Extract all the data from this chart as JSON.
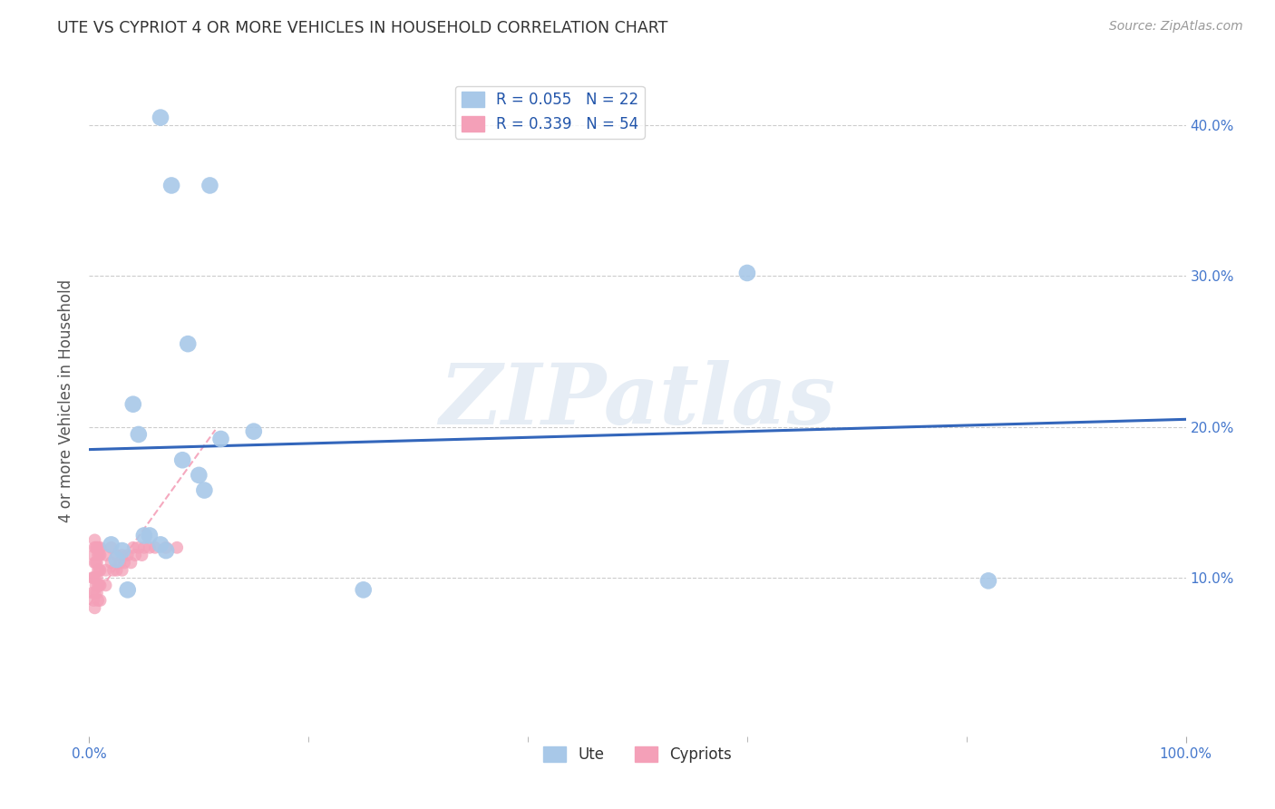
{
  "title": "UTE VS CYPRIOT 4 OR MORE VEHICLES IN HOUSEHOLD CORRELATION CHART",
  "source": "Source: ZipAtlas.com",
  "ylabel": "4 or more Vehicles in Household",
  "xlim": [
    0.0,
    1.0
  ],
  "ylim": [
    -0.005,
    0.44
  ],
  "legend_ute_r": "R = 0.055",
  "legend_ute_n": "N = 22",
  "legend_cyp_r": "R = 0.339",
  "legend_cyp_n": "N = 54",
  "watermark": "ZIPatlas",
  "ute_color": "#a8c8e8",
  "cyp_color": "#f4a0b8",
  "ute_line_color": "#3366bb",
  "cyp_line_color": "#f4a0b8",
  "grid_color": "#cccccc",
  "background_color": "#ffffff",
  "ute_scatter_x": [
    0.065,
    0.075,
    0.11,
    0.04,
    0.045,
    0.09,
    0.12,
    0.085,
    0.1,
    0.105,
    0.055,
    0.065,
    0.07,
    0.05,
    0.15,
    0.02,
    0.03,
    0.025,
    0.035,
    0.6,
    0.82,
    0.25
  ],
  "ute_scatter_y": [
    0.405,
    0.36,
    0.36,
    0.215,
    0.195,
    0.255,
    0.192,
    0.178,
    0.168,
    0.158,
    0.128,
    0.122,
    0.118,
    0.128,
    0.197,
    0.122,
    0.118,
    0.112,
    0.092,
    0.302,
    0.098,
    0.092
  ],
  "cyp_scatter_x": [
    0.003,
    0.003,
    0.004,
    0.004,
    0.004,
    0.005,
    0.005,
    0.005,
    0.005,
    0.005,
    0.005,
    0.006,
    0.006,
    0.006,
    0.007,
    0.007,
    0.007,
    0.007,
    0.008,
    0.008,
    0.008,
    0.008,
    0.008,
    0.009,
    0.009,
    0.009,
    0.01,
    0.01,
    0.01,
    0.01,
    0.01,
    0.015,
    0.015,
    0.015,
    0.02,
    0.02,
    0.022,
    0.025,
    0.025,
    0.028,
    0.03,
    0.03,
    0.032,
    0.035,
    0.038,
    0.04,
    0.042,
    0.045,
    0.048,
    0.05,
    0.055,
    0.06,
    0.07,
    0.08
  ],
  "cyp_scatter_y": [
    0.1,
    0.09,
    0.115,
    0.1,
    0.085,
    0.125,
    0.12,
    0.11,
    0.1,
    0.09,
    0.08,
    0.12,
    0.11,
    0.095,
    0.12,
    0.11,
    0.1,
    0.09,
    0.12,
    0.115,
    0.105,
    0.095,
    0.085,
    0.115,
    0.105,
    0.095,
    0.12,
    0.115,
    0.105,
    0.095,
    0.085,
    0.115,
    0.105,
    0.095,
    0.12,
    0.11,
    0.105,
    0.115,
    0.105,
    0.11,
    0.115,
    0.105,
    0.11,
    0.115,
    0.11,
    0.12,
    0.115,
    0.12,
    0.115,
    0.12,
    0.12,
    0.12,
    0.12,
    0.12
  ],
  "ute_trendline_x": [
    0.0,
    1.0
  ],
  "ute_trendline_y": [
    0.185,
    0.205
  ],
  "cyp_trendline_x": [
    0.0,
    0.115
  ],
  "cyp_trendline_y": [
    0.082,
    0.198
  ]
}
